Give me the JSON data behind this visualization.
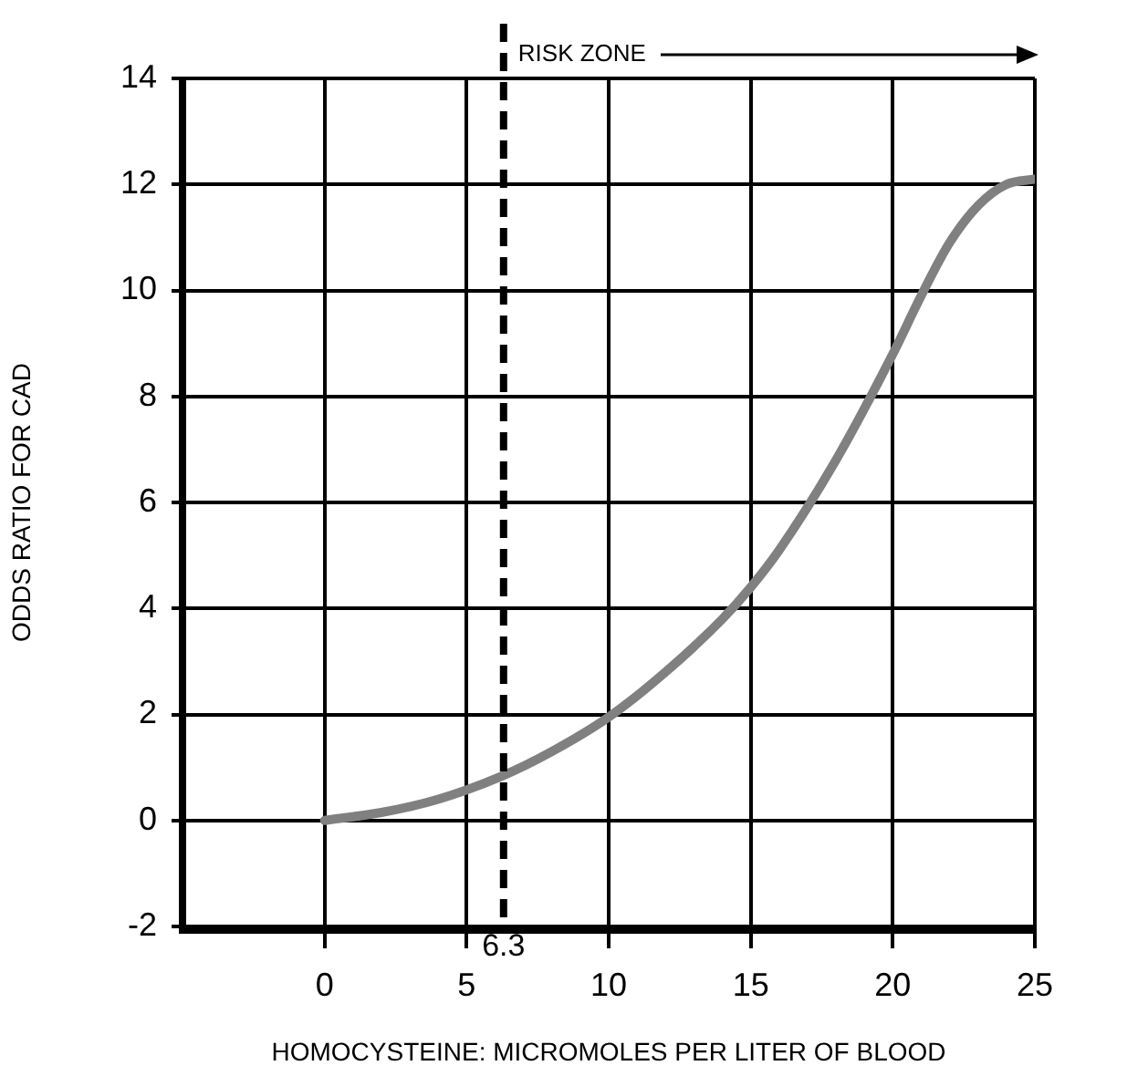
{
  "chart_data": {
    "type": "line",
    "xlabel": "HOMOCYSTEINE: MICROMOLES PER LITER OF BLOOD",
    "ylabel": "ODDS RATIO FOR CAD",
    "xlim": [
      -5,
      25
    ],
    "xticks": [
      0,
      5,
      10,
      15,
      20,
      25
    ],
    "ylim": [
      -2,
      14
    ],
    "yticks": [
      -2,
      0,
      2,
      4,
      6,
      8,
      10,
      12,
      14
    ],
    "grid": true,
    "legend": false,
    "marker": "none",
    "line_style": "solid",
    "series": [
      {
        "color": "#808080",
        "x": [
          0,
          2,
          4,
          6.3,
          8,
          10,
          12,
          14,
          15,
          16,
          18,
          20,
          21,
          22,
          23,
          24,
          25
        ],
        "values": [
          0,
          0.15,
          0.4,
          0.85,
          1.3,
          1.95,
          2.8,
          3.8,
          4.4,
          5.1,
          6.8,
          8.8,
          9.9,
          10.9,
          11.6,
          12.0,
          12.1
        ]
      }
    ],
    "ref_lines": [
      {
        "axis": "x",
        "value": 6.3,
        "label": "6.3",
        "line_style": "dashed",
        "color": "#000000"
      }
    ],
    "annotations": [
      {
        "text": "RISK ZONE",
        "x": 6.3,
        "y": 14
      }
    ]
  }
}
